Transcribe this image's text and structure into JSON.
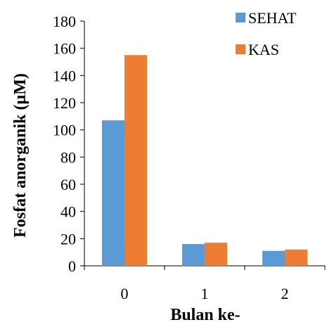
{
  "chart_data": {
    "type": "bar",
    "categories": [
      "0",
      "1",
      "2"
    ],
    "series": [
      {
        "name": "SEHAT",
        "color": "#5B9BD5",
        "values": [
          107,
          16,
          11
        ]
      },
      {
        "name": "KAS",
        "color": "#ED7D31",
        "values": [
          155,
          17,
          12
        ]
      }
    ],
    "xlabel": "Bulan ke-",
    "ylabel": "Fosfat anorganik (µM)",
    "ylim": [
      0,
      180
    ],
    "yticks": [
      0,
      20,
      40,
      60,
      80,
      100,
      120,
      140,
      160,
      180
    ],
    "grid": false,
    "legend_position": "top-right"
  }
}
